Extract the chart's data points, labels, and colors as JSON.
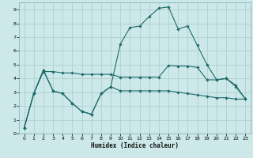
{
  "xlabel": "Humidex (Indice chaleur)",
  "xlim": [
    -0.5,
    23.5
  ],
  "ylim": [
    0,
    9.5
  ],
  "yticks": [
    0,
    1,
    2,
    3,
    4,
    5,
    6,
    7,
    8,
    9
  ],
  "xticks": [
    0,
    1,
    2,
    3,
    4,
    5,
    6,
    7,
    8,
    9,
    10,
    11,
    12,
    13,
    14,
    15,
    16,
    17,
    18,
    19,
    20,
    21,
    22,
    23
  ],
  "bg_color": "#cce8e8",
  "line_color": "#1e6b6b",
  "grid_color": "#aacccc",
  "line1_x": [
    0,
    1,
    2,
    3,
    4,
    5,
    6,
    7,
    8,
    9,
    10,
    11,
    12,
    13,
    14,
    15,
    16,
    17,
    18,
    19,
    20,
    21,
    22,
    23
  ],
  "line1_y": [
    0.4,
    2.9,
    4.6,
    3.1,
    2.9,
    2.2,
    1.6,
    1.4,
    2.9,
    3.4,
    3.1,
    3.1,
    3.1,
    3.1,
    3.1,
    3.1,
    3.0,
    2.9,
    2.8,
    2.7,
    2.6,
    2.6,
    2.5,
    2.5
  ],
  "line2_x": [
    0,
    1,
    2,
    3,
    4,
    5,
    6,
    7,
    8,
    9,
    10,
    11,
    12,
    13,
    14,
    15,
    16,
    17,
    18,
    19,
    20,
    21,
    22,
    23
  ],
  "line2_y": [
    0.4,
    2.9,
    4.5,
    4.5,
    4.4,
    4.4,
    4.3,
    4.3,
    4.3,
    4.3,
    4.1,
    4.1,
    4.1,
    4.1,
    4.1,
    4.95,
    4.9,
    4.9,
    4.8,
    3.9,
    3.9,
    4.0,
    3.5,
    2.5
  ],
  "line3_x": [
    0,
    1,
    2,
    3,
    4,
    5,
    6,
    7,
    8,
    9,
    10,
    11,
    12,
    13,
    14,
    15,
    16,
    17,
    18,
    19,
    20,
    21,
    22,
    23
  ],
  "line3_y": [
    0.4,
    2.9,
    4.6,
    3.1,
    2.9,
    2.2,
    1.6,
    1.4,
    2.9,
    3.4,
    6.5,
    7.7,
    7.8,
    8.5,
    9.1,
    9.2,
    7.6,
    7.8,
    6.4,
    5.0,
    3.9,
    4.0,
    3.4,
    2.5
  ]
}
